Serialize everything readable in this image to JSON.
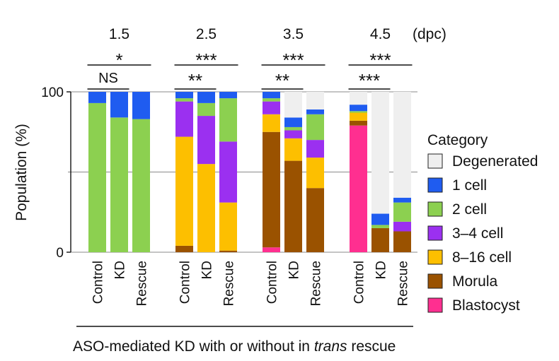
{
  "chart_data": {
    "type": "stacked-bar",
    "ylabel": "Population (%)",
    "yticks": [
      "0",
      "100"
    ],
    "ylim": [
      0,
      100
    ],
    "days_unit": "(dpc)",
    "xlabel": {
      "prefix": "ASO-mediated KD with or without in ",
      "italic": "trans",
      "suffix": " rescue"
    },
    "legend": {
      "title": "Category",
      "entries": [
        {
          "name": "Degenerated",
          "color": "#efefef"
        },
        {
          "name": "1 cell",
          "color": "#1f5cf0"
        },
        {
          "name": "2 cell",
          "color": "#8cd050"
        },
        {
          "name": "3–4 cell",
          "color": "#9b30f0"
        },
        {
          "name": "8–16 cell",
          "color": "#fdbf00"
        },
        {
          "name": "Morula",
          "color": "#9a5200"
        },
        {
          "name": "Blastocyst",
          "color": "#ff2f90"
        }
      ]
    },
    "groups": [
      {
        "day": "1.5",
        "bars": [
          {
            "label": "Control",
            "segments": {
              "Degenerated": 0,
              "1 cell": 7,
              "2 cell": 93,
              "3–4 cell": 0,
              "8–16 cell": 0,
              "Morula": 0,
              "Blastocyst": 0
            }
          },
          {
            "label": "KD",
            "segments": {
              "Degenerated": 0,
              "1 cell": 16,
              "2 cell": 84,
              "3–4 cell": 0,
              "8–16 cell": 0,
              "Morula": 0,
              "Blastocyst": 0
            }
          },
          {
            "label": "Rescue",
            "segments": {
              "Degenerated": 0,
              "1 cell": 17,
              "2 cell": 83,
              "3–4 cell": 0,
              "8–16 cell": 0,
              "Morula": 0,
              "Blastocyst": 0
            }
          }
        ],
        "significance": [
          {
            "text": "*",
            "pair": [
              "Control",
              "Rescue"
            ],
            "level": 2
          },
          {
            "text": "NS",
            "pair": [
              "Control",
              "KD"
            ],
            "level": 1
          }
        ]
      },
      {
        "day": "2.5",
        "bars": [
          {
            "label": "Control",
            "segments": {
              "Degenerated": 0,
              "1 cell": 4,
              "2 cell": 2,
              "3–4 cell": 22,
              "8–16 cell": 68,
              "Morula": 4,
              "Blastocyst": 0
            }
          },
          {
            "label": "KD",
            "segments": {
              "Degenerated": 0,
              "1 cell": 7,
              "2 cell": 8,
              "3–4 cell": 30,
              "8–16 cell": 55,
              "Morula": 0,
              "Blastocyst": 0
            }
          },
          {
            "label": "Rescue",
            "segments": {
              "Degenerated": 0,
              "1 cell": 4,
              "2 cell": 27,
              "3–4 cell": 38,
              "8–16 cell": 30,
              "Morula": 1,
              "Blastocyst": 0
            }
          }
        ],
        "significance": [
          {
            "text": "***",
            "pair": [
              "Control",
              "Rescue"
            ],
            "level": 2
          },
          {
            "text": "**",
            "pair": [
              "Control",
              "KD"
            ],
            "level": 1
          }
        ]
      },
      {
        "day": "3.5",
        "bars": [
          {
            "label": "Control",
            "segments": {
              "Degenerated": 0,
              "1 cell": 4,
              "2 cell": 2,
              "3–4 cell": 8,
              "8–16 cell": 11,
              "Morula": 72,
              "Blastocyst": 3
            }
          },
          {
            "label": "KD",
            "segments": {
              "Degenerated": 16,
              "1 cell": 6,
              "2 cell": 2,
              "3–4 cell": 5,
              "8–16 cell": 14,
              "Morula": 57,
              "Blastocyst": 0
            }
          },
          {
            "label": "Rescue",
            "segments": {
              "Degenerated": 11,
              "1 cell": 3,
              "2 cell": 16,
              "3–4 cell": 11,
              "8–16 cell": 19,
              "Morula": 40,
              "Blastocyst": 0
            }
          }
        ],
        "significance": [
          {
            "text": "***",
            "pair": [
              "Control",
              "Rescue"
            ],
            "level": 2
          },
          {
            "text": "**",
            "pair": [
              "Control",
              "KD"
            ],
            "level": 1
          }
        ]
      },
      {
        "day": "4.5",
        "bars": [
          {
            "label": "Control",
            "segments": {
              "Degenerated": 8,
              "1 cell": 4,
              "2 cell": 1,
              "3–4 cell": 0,
              "8–16 cell": 5,
              "Morula": 3,
              "Blastocyst": 79
            }
          },
          {
            "label": "KD",
            "segments": {
              "Degenerated": 76,
              "1 cell": 7,
              "2 cell": 2,
              "3–4 cell": 0,
              "8–16 cell": 0,
              "Morula": 15,
              "Blastocyst": 0
            }
          },
          {
            "label": "Rescue",
            "segments": {
              "Degenerated": 66,
              "1 cell": 3,
              "2 cell": 12,
              "3–4 cell": 6,
              "8–16 cell": 0,
              "Morula": 13,
              "Blastocyst": 0
            }
          }
        ],
        "significance": [
          {
            "text": "***",
            "pair": [
              "Control",
              "Rescue"
            ],
            "level": 2
          },
          {
            "text": "***",
            "pair": [
              "Control",
              "KD"
            ],
            "level": 1
          }
        ]
      }
    ]
  }
}
